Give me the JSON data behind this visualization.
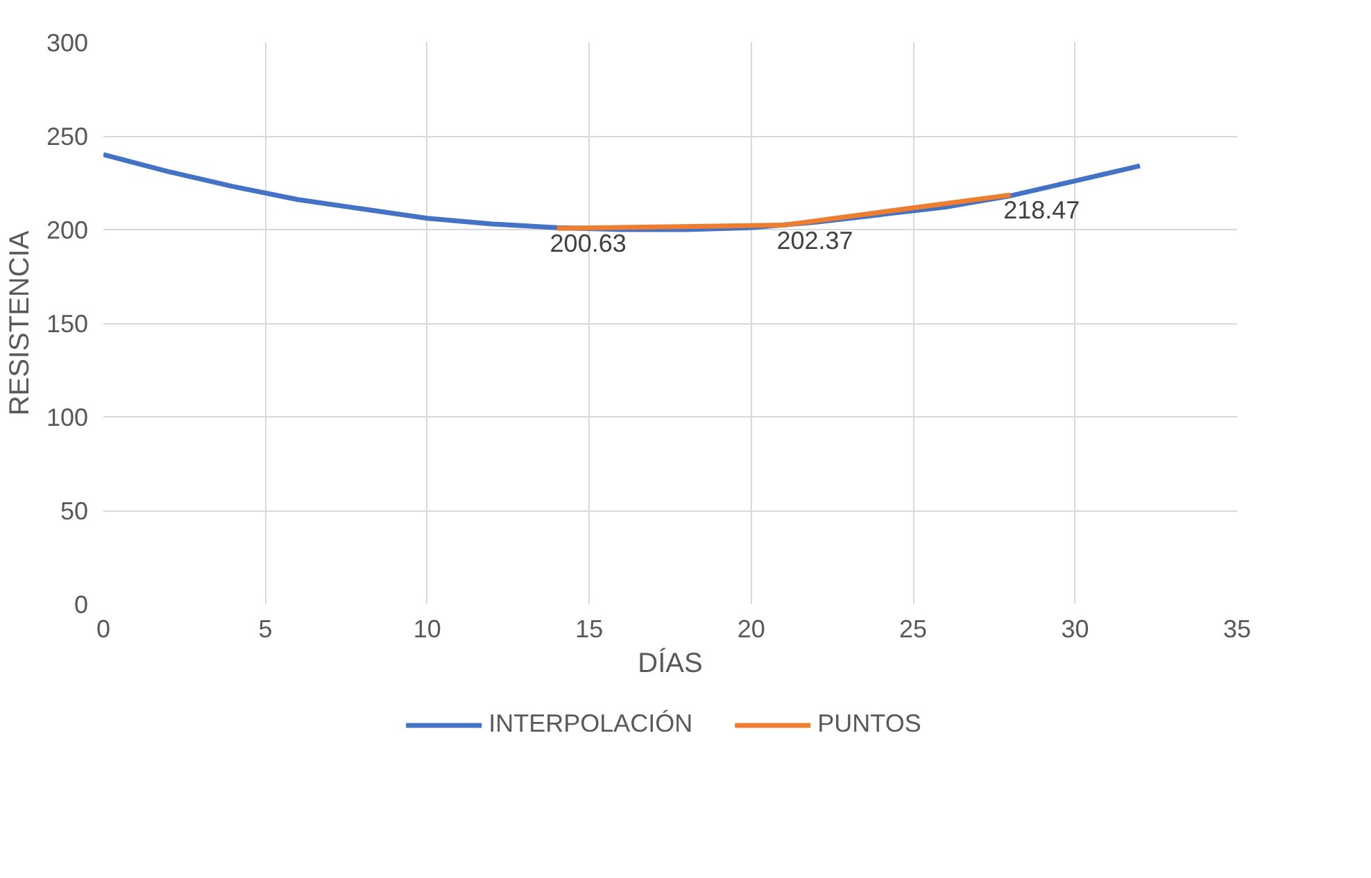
{
  "chart_data": {
    "type": "line",
    "xlabel": "DÍAS",
    "ylabel": "RESISTENCIA",
    "xlim": [
      0,
      35
    ],
    "xticks": [
      0,
      5,
      10,
      15,
      20,
      25,
      30,
      35
    ],
    "ylim": [
      0,
      300
    ],
    "yticks": [
      0,
      50,
      100,
      150,
      200,
      250,
      300
    ],
    "grid": true,
    "legend": "bottom",
    "marker": "none",
    "line_style": "solid",
    "series": [
      {
        "name": "INTERPOLACIÓN",
        "color": "#4472c4",
        "x": [
          0,
          2,
          4,
          6,
          8,
          10,
          12,
          14,
          16,
          18,
          20,
          22,
          24,
          26,
          28,
          30,
          32
        ],
        "values": [
          240,
          231,
          223,
          216,
          211,
          206,
          203,
          201,
          200,
          200,
          201,
          204,
          208,
          212,
          218,
          226,
          234
        ]
      },
      {
        "name": "PUNTOS",
        "color": "#ed7d31",
        "x": [
          14,
          21,
          28
        ],
        "values": [
          200.63,
          202.37,
          218.47
        ],
        "value_labels": [
          "200.63",
          "202.37",
          "218.47"
        ]
      }
    ]
  }
}
